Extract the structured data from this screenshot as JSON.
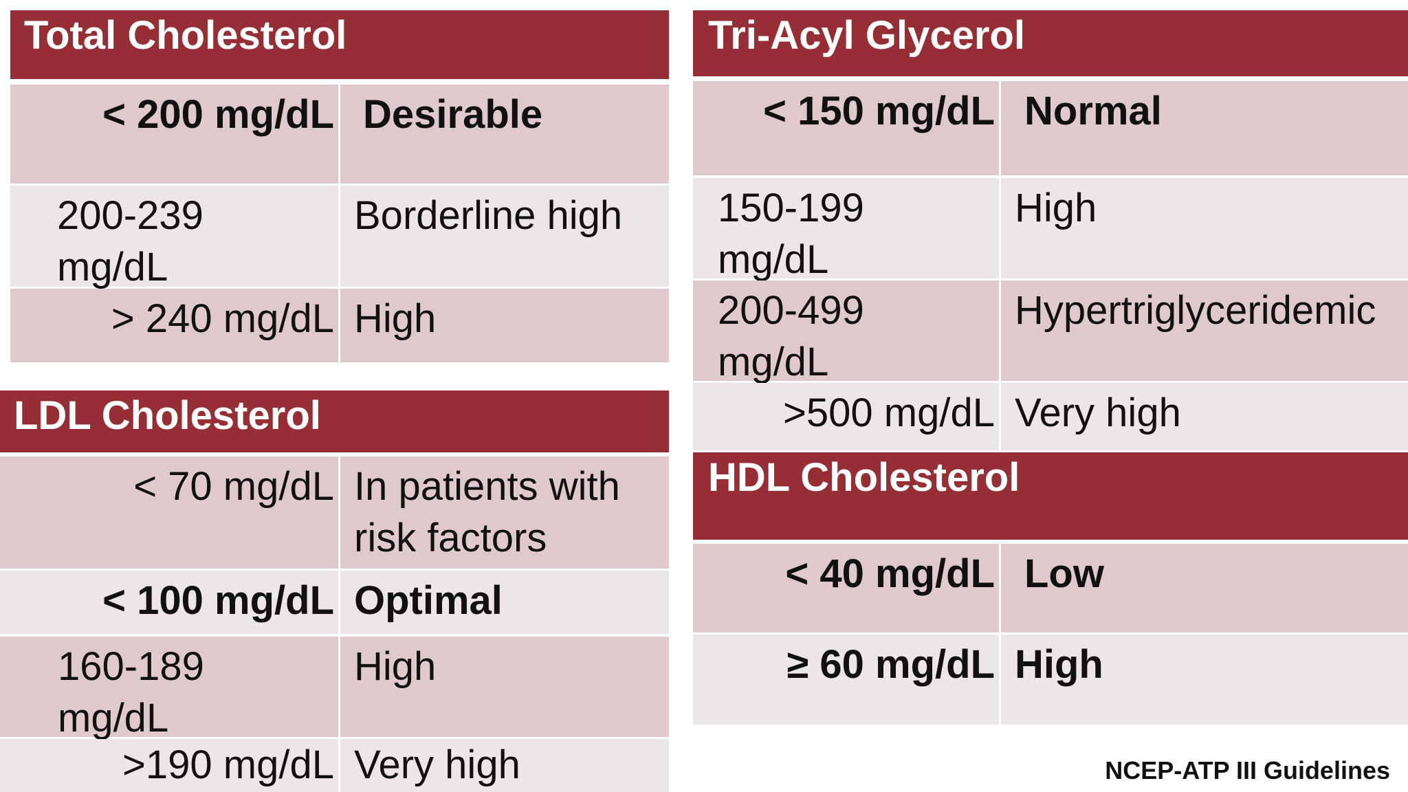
{
  "total": {
    "title": "Total Cholesterol",
    "rows": [
      {
        "value": "< 200 mg/dL",
        "label": "Desirable"
      },
      {
        "value": "200-239 mg/dL",
        "label": "Borderline high"
      },
      {
        "value": "> 240 mg/dL",
        "label": "High"
      }
    ]
  },
  "ldl": {
    "title": "LDL Cholesterol",
    "rows": [
      {
        "value": "< 70 mg/dL",
        "label": "In patients with risk factors"
      },
      {
        "value": "< 100 mg/dL",
        "label": "Optimal"
      },
      {
        "value": "160-189 mg/dL",
        "label": "High"
      },
      {
        "value": ">190 mg/dL",
        "label": "Very high"
      }
    ]
  },
  "tag": {
    "title": "Tri-Acyl Glycerol",
    "rows": [
      {
        "value": "< 150 mg/dL",
        "label": "Normal"
      },
      {
        "value": "150-199 mg/dL",
        "label": "High"
      },
      {
        "value": "200-499 mg/dL",
        "label": "Hypertriglyceridemic"
      },
      {
        "value": ">500 mg/dL",
        "label": "Very high"
      }
    ]
  },
  "hdl": {
    "title": "HDL Cholesterol",
    "rows": [
      {
        "value": "< 40 mg/dL",
        "label": "Low"
      },
      {
        "value": "≥ 60 mg/dL",
        "label": "High"
      }
    ]
  },
  "footer": "NCEP-ATP III Guidelines",
  "colors": {
    "header": "#952f35",
    "row_dark": "#dfc9cc",
    "row_light": "#ede6e7"
  }
}
